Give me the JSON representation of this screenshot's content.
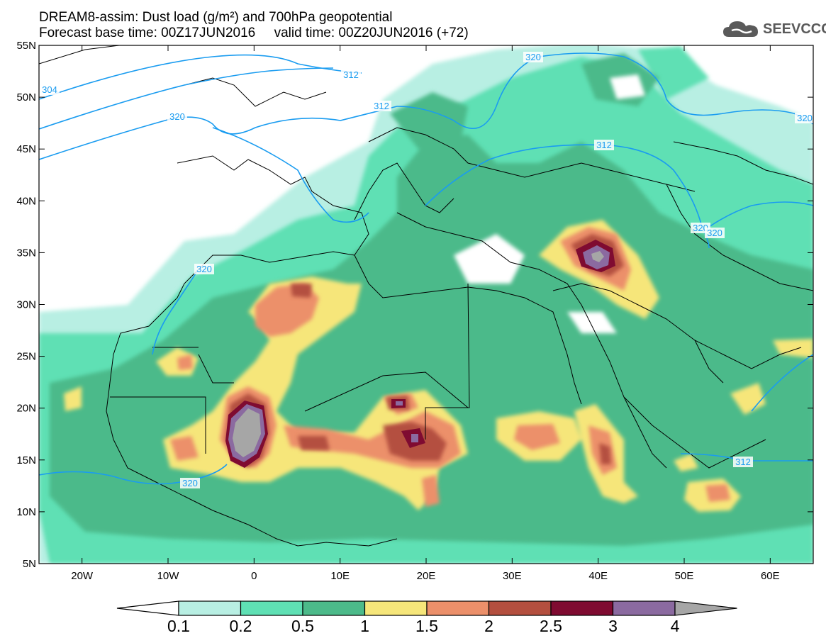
{
  "title": {
    "line1": "DREAM8-assim: Dust load (g/m²) and 700hPa geopotential",
    "line2": "Forecast base time: 00Z17JUN2016     valid time: 00Z20JUN2016 (+72)"
  },
  "logo": {
    "text": "SEEVCCC",
    "icon": "cloud-icon"
  },
  "map": {
    "lat_labels": [
      "55N",
      "50N",
      "45N",
      "40N",
      "35N",
      "30N",
      "25N",
      "20N",
      "15N",
      "10N",
      "5N"
    ],
    "lon_labels": [
      "20W",
      "10W",
      "0",
      "10E",
      "20E",
      "30E",
      "40E",
      "50E",
      "60E"
    ],
    "lat_range": [
      5,
      55
    ],
    "lon_range": [
      -25,
      65
    ],
    "contour_labels": [
      "304",
      "312",
      "320",
      "312",
      "320",
      "312",
      "320",
      "320",
      "320",
      "320",
      "312",
      "320"
    ]
  },
  "colorbar": {
    "labels": [
      "0.1",
      "0.2",
      "0.5",
      "1",
      "1.5",
      "2",
      "2.5",
      "3",
      "4"
    ],
    "colors": [
      "#b8efe3",
      "#5fe0b4",
      "#4cba8a",
      "#f6e67a",
      "#ec906a",
      "#b44f3f",
      "#7f0b31",
      "#8b6aa0",
      "#a6a6a6"
    ]
  }
}
